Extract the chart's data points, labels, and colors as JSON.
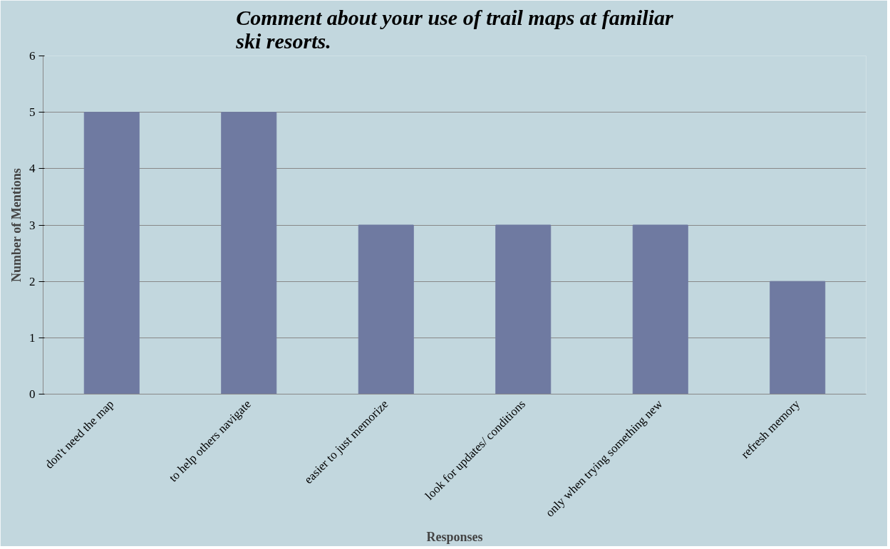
{
  "chart_data": {
    "type": "bar",
    "title": "Comment about your use of trail maps at familiar ski resorts.",
    "xlabel": "Responses",
    "ylabel": "Number of Mentions",
    "categories": [
      "don't need the map",
      "to help others navigate",
      "easier to just memorize",
      "look for updates/ conditions",
      "only when trying something new",
      "refresh memory"
    ],
    "values": [
      5,
      5,
      3,
      3,
      3,
      2
    ],
    "color": "#6f7aa1",
    "ylim": [
      0,
      6
    ],
    "yticks": [
      0,
      1,
      2,
      3,
      4,
      5,
      6
    ],
    "grid": "y"
  }
}
